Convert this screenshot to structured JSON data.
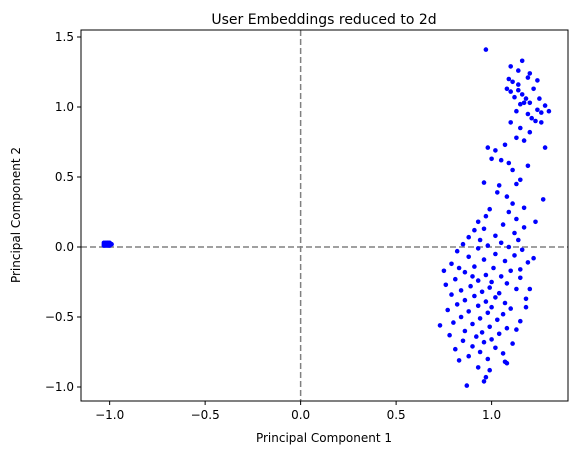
{
  "chart_data": {
    "type": "scatter",
    "title": "User Embeddings reduced to 2d",
    "xlabel": "Principal Component 1",
    "ylabel": "Principal Component 2",
    "xlim": [
      -1.15,
      1.4
    ],
    "ylim": [
      -1.1,
      1.55
    ],
    "x_ticks": [
      -1.0,
      -0.5,
      0.0,
      0.5,
      1.0
    ],
    "x_tick_labels": [
      "−1.0",
      "−0.5",
      "0.0",
      "0.5",
      "1.0"
    ],
    "y_ticks": [
      -1.0,
      -0.5,
      0.0,
      0.5,
      1.0,
      1.5
    ],
    "y_tick_labels": [
      "−1.0",
      "−0.5",
      "0.0",
      "0.5",
      "1.0",
      "1.5"
    ],
    "grid": false,
    "reference_lines": {
      "x": 0,
      "y": 0,
      "style": "dashed",
      "color": "#808080"
    },
    "marker_color": "#0000ff",
    "series": [
      {
        "points": [
          [
            -1.03,
            0.03
          ],
          [
            -1.02,
            0.02
          ],
          [
            -1.01,
            0.03
          ],
          [
            -1.0,
            0.02
          ],
          [
            -1.02,
            0.01
          ],
          [
            -1.01,
            0.01
          ],
          [
            -1.03,
            0.02
          ],
          [
            -1.0,
            0.03
          ],
          [
            -1.02,
            0.03
          ],
          [
            -1.01,
            0.02
          ],
          [
            -0.99,
            0.02
          ],
          [
            -1.03,
            0.01
          ],
          [
            -1.0,
            0.01
          ],
          [
            -1.02,
            0.02
          ],
          [
            -1.01,
            0.03
          ],
          [
            0.97,
            1.41
          ],
          [
            1.16,
            1.33
          ],
          [
            1.1,
            1.29
          ],
          [
            1.14,
            1.26
          ],
          [
            1.09,
            1.2
          ],
          [
            1.2,
            1.24
          ],
          [
            1.19,
            1.21
          ],
          [
            1.24,
            1.19
          ],
          [
            1.14,
            1.16
          ],
          [
            1.08,
            1.13
          ],
          [
            1.1,
            1.11
          ],
          [
            1.12,
            1.07
          ],
          [
            1.16,
            1.09
          ],
          [
            1.18,
            1.06
          ],
          [
            1.2,
            1.03
          ],
          [
            1.15,
            1.02
          ],
          [
            1.25,
            1.06
          ],
          [
            1.28,
            1.01
          ],
          [
            1.3,
            0.97
          ],
          [
            1.24,
            0.98
          ],
          [
            1.13,
            0.97
          ],
          [
            1.19,
            0.95
          ],
          [
            1.21,
            0.92
          ],
          [
            1.23,
            0.9
          ],
          [
            1.26,
            0.89
          ],
          [
            1.1,
            0.89
          ],
          [
            1.15,
            0.85
          ],
          [
            1.2,
            0.82
          ],
          [
            1.17,
            0.76
          ],
          [
            1.13,
            0.78
          ],
          [
            1.07,
            0.73
          ],
          [
            1.28,
            0.71
          ],
          [
            1.02,
            0.69
          ],
          [
            1.05,
            0.62
          ],
          [
            1.09,
            0.6
          ],
          [
            0.98,
            0.71
          ],
          [
            1.11,
            0.55
          ],
          [
            1.0,
            0.63
          ],
          [
            0.96,
            0.46
          ],
          [
            1.13,
            0.45
          ],
          [
            1.15,
            0.48
          ],
          [
            1.03,
            0.39
          ],
          [
            1.08,
            0.36
          ],
          [
            1.27,
            0.34
          ],
          [
            1.09,
            0.25
          ],
          [
            1.17,
            0.28
          ],
          [
            0.99,
            0.27
          ],
          [
            1.23,
            0.18
          ],
          [
            0.93,
            0.18
          ],
          [
            1.13,
            0.2
          ],
          [
            1.06,
            0.16
          ],
          [
            0.96,
            0.13
          ],
          [
            0.91,
            0.12
          ],
          [
            1.12,
            0.1
          ],
          [
            0.88,
            0.07
          ],
          [
            1.02,
            0.08
          ],
          [
            1.14,
            0.05
          ],
          [
            0.94,
            0.05
          ],
          [
            1.05,
            0.03
          ],
          [
            0.85,
            0.02
          ],
          [
            0.98,
            0.01
          ],
          [
            1.09,
            0.0
          ],
          [
            0.93,
            -0.01
          ],
          [
            1.16,
            -0.02
          ],
          [
            0.82,
            -0.03
          ],
          [
            1.02,
            -0.05
          ],
          [
            1.12,
            -0.06
          ],
          [
            0.88,
            -0.07
          ],
          [
            0.96,
            -0.09
          ],
          [
            1.07,
            -0.1
          ],
          [
            1.19,
            -0.11
          ],
          [
            0.79,
            -0.12
          ],
          [
            0.91,
            -0.14
          ],
          [
            1.01,
            -0.15
          ],
          [
            1.1,
            -0.17
          ],
          [
            0.75,
            -0.17
          ],
          [
            0.86,
            -0.18
          ],
          [
            0.97,
            -0.2
          ],
          [
            1.05,
            -0.21
          ],
          [
            1.15,
            -0.22
          ],
          [
            0.81,
            -0.23
          ],
          [
            0.93,
            -0.24
          ],
          [
            1.0,
            -0.25
          ],
          [
            1.08,
            -0.26
          ],
          [
            0.76,
            -0.27
          ],
          [
            0.89,
            -0.28
          ],
          [
            0.99,
            -0.29
          ],
          [
            1.13,
            -0.3
          ],
          [
            0.84,
            -0.31
          ],
          [
            0.95,
            -0.32
          ],
          [
            1.04,
            -0.33
          ],
          [
            0.79,
            -0.34
          ],
          [
            0.91,
            -0.35
          ],
          [
            1.02,
            -0.36
          ],
          [
            1.18,
            -0.37
          ],
          [
            0.86,
            -0.38
          ],
          [
            0.97,
            -0.39
          ],
          [
            1.07,
            -0.4
          ],
          [
            0.82,
            -0.41
          ],
          [
            0.93,
            -0.42
          ],
          [
            1.0,
            -0.43
          ],
          [
            1.1,
            -0.44
          ],
          [
            0.77,
            -0.45
          ],
          [
            0.88,
            -0.46
          ],
          [
            0.98,
            -0.47
          ],
          [
            1.06,
            -0.48
          ],
          [
            0.84,
            -0.5
          ],
          [
            0.94,
            -0.51
          ],
          [
            1.03,
            -0.52
          ],
          [
            1.15,
            -0.53
          ],
          [
            0.8,
            -0.54
          ],
          [
            0.9,
            -0.55
          ],
          [
            0.73,
            -0.56
          ],
          [
            0.99,
            -0.57
          ],
          [
            1.08,
            -0.58
          ],
          [
            0.86,
            -0.6
          ],
          [
            0.95,
            -0.61
          ],
          [
            1.04,
            -0.62
          ],
          [
            0.78,
            -0.63
          ],
          [
            0.92,
            -0.64
          ],
          [
            1.0,
            -0.66
          ],
          [
            0.85,
            -0.67
          ],
          [
            0.96,
            -0.68
          ],
          [
            1.11,
            -0.69
          ],
          [
            0.9,
            -0.71
          ],
          [
            1.02,
            -0.72
          ],
          [
            0.81,
            -0.73
          ],
          [
            0.94,
            -0.75
          ],
          [
            1.06,
            -0.76
          ],
          [
            0.88,
            -0.78
          ],
          [
            0.98,
            -0.8
          ],
          [
            0.83,
            -0.81
          ],
          [
            1.08,
            -0.83
          ],
          [
            0.93,
            -0.86
          ],
          [
            0.99,
            -0.88
          ],
          [
            0.97,
            -0.93
          ],
          [
            0.96,
            -0.96
          ],
          [
            0.87,
            -0.99
          ],
          [
            1.15,
            -0.16
          ],
          [
            1.22,
            -0.08
          ],
          [
            1.18,
            -0.43
          ],
          [
            1.13,
            -0.59
          ],
          [
            1.2,
            -0.3
          ],
          [
            1.07,
            -0.82
          ],
          [
            0.9,
            -0.21
          ],
          [
            0.83,
            -0.15
          ],
          [
            1.17,
            0.14
          ],
          [
            1.11,
            0.31
          ],
          [
            0.97,
            0.22
          ],
          [
            1.04,
            0.44
          ],
          [
            1.19,
            0.58
          ],
          [
            1.14,
            1.12
          ],
          [
            1.22,
            1.13
          ],
          [
            1.17,
            1.03
          ],
          [
            1.11,
            1.18
          ],
          [
            1.26,
            0.96
          ]
        ]
      }
    ]
  }
}
